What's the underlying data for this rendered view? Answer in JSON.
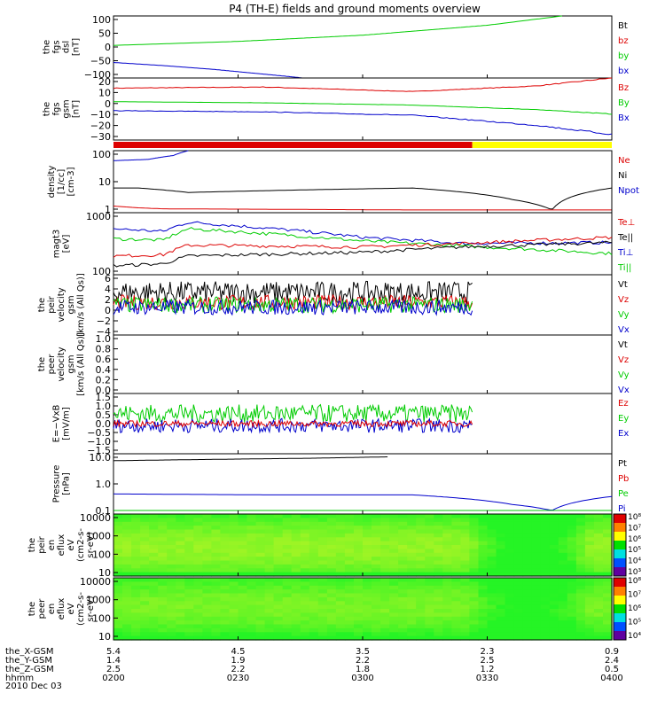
{
  "title": "P4 (TH-E) fields and ground moments overview",
  "colors": {
    "black": "#000000",
    "red": "#dd0000",
    "green": "#00cc00",
    "blue": "#0000cc",
    "yellow": "#ffff00",
    "axis": "#000000"
  },
  "panels": [
    {
      "id": "fgs-dsl",
      "ylabel": [
        "the",
        "fgs",
        "dsl",
        "[nT]"
      ],
      "yticks": [
        "100",
        "50",
        "0",
        "−50",
        "−100"
      ],
      "legend": [
        {
          "text": "Bt",
          "color": "black"
        },
        {
          "text": "bz",
          "color": "red"
        },
        {
          "text": "by",
          "color": "green"
        },
        {
          "text": "bx",
          "color": "blue"
        }
      ]
    },
    {
      "id": "fgs-gsm",
      "ylabel": [
        "the",
        "fgs",
        "gsm",
        "[nT]"
      ],
      "yticks": [
        "20",
        "10",
        "0",
        "−10",
        "−20",
        "−30"
      ],
      "legend": [
        {
          "text": "Bz",
          "color": "red"
        },
        {
          "text": "By",
          "color": "green"
        },
        {
          "text": "Bx",
          "color": "blue"
        }
      ]
    },
    {
      "id": "mode-bar"
    },
    {
      "id": "density",
      "ylabel": [
        "density",
        "[1/cc]",
        "[cm-3]"
      ],
      "yticks": [
        "100",
        "10",
        "1"
      ],
      "legend": [
        {
          "text": "Ne",
          "color": "red"
        },
        {
          "text": "Ni",
          "color": "black"
        },
        {
          "text": "Npot",
          "color": "blue"
        }
      ]
    },
    {
      "id": "temperature",
      "ylabel": [
        "magt3",
        "[eV]"
      ],
      "yticks": [
        "1000",
        "100"
      ],
      "legend": [
        {
          "text": "Te⊥",
          "color": "red"
        },
        {
          "text": "Te||",
          "color": "black"
        },
        {
          "text": "Ti⊥",
          "color": "blue"
        },
        {
          "text": "Ti||",
          "color": "green"
        }
      ]
    },
    {
      "id": "vel-full",
      "ylabel": [
        "the",
        "peir",
        "velocity",
        "gsm",
        "[km/s (All Qs)]"
      ],
      "yticks": [
        "6",
        "4",
        "2",
        "0",
        "−2",
        "−4"
      ],
      "legend": [
        {
          "text": "Vt",
          "color": "black"
        },
        {
          "text": "Vz",
          "color": "red"
        },
        {
          "text": "Vy",
          "color": "green"
        },
        {
          "text": "Vx",
          "color": "blue"
        }
      ]
    },
    {
      "id": "vel-burst",
      "ylabel": [
        "the",
        "peer",
        "velocity",
        "gsm",
        "[km/s (All Qs)]"
      ],
      "yticks": [
        "1.0",
        "0.8",
        "0.6",
        "0.4",
        "0.2",
        "0.0"
      ],
      "legend": [
        {
          "text": "Vt",
          "color": "black"
        },
        {
          "text": "Vz",
          "color": "red"
        },
        {
          "text": "Vy",
          "color": "green"
        },
        {
          "text": "Vx",
          "color": "blue"
        }
      ]
    },
    {
      "id": "efield",
      "ylabel": [
        "E=−VxB",
        "[mV/m]"
      ],
      "yticks": [
        "1.5",
        "1.0",
        "0.5",
        "0.0",
        "−0.5",
        "−1.0",
        "−1.5"
      ],
      "legend": [
        {
          "text": "Ez",
          "color": "red"
        },
        {
          "text": "Ey",
          "color": "green"
        },
        {
          "text": "Ex",
          "color": "blue"
        }
      ]
    },
    {
      "id": "pressure",
      "ylabel": [
        "Pressure",
        "[nPa]"
      ],
      "yticks": [
        "10.0",
        "1.0",
        "0.1"
      ],
      "legend": [
        {
          "text": "Pt",
          "color": "black"
        },
        {
          "text": "Pb",
          "color": "red"
        },
        {
          "text": "Pe",
          "color": "green"
        },
        {
          "text": "Pi",
          "color": "blue"
        }
      ]
    },
    {
      "id": "ion-spec",
      "ylabel": [
        "the",
        "peir",
        "en",
        "eflux",
        "eV",
        "(cm2-s-",
        "sr-eV)"
      ],
      "yticks": [
        "10000",
        "1000",
        "100",
        "10"
      ],
      "colorbar": [
        "10⁸",
        "10⁷",
        "10⁶",
        "10⁵",
        "10⁴",
        "10³"
      ]
    },
    {
      "id": "ele-spec",
      "ylabel": [
        "the",
        "peer",
        "en",
        "eflux",
        "eV",
        "(cm2-s-",
        "sr-eV)"
      ],
      "yticks": [
        "10000",
        "1000",
        "100",
        "10"
      ],
      "colorbar": [
        "10⁸",
        "10⁷",
        "10⁶",
        "10⁵",
        "10⁴"
      ]
    }
  ],
  "xaxis": {
    "rows": [
      {
        "label": "the_X-GSM",
        "values": [
          "5.4",
          "4.5",
          "3.5",
          "2.3",
          "0.9"
        ]
      },
      {
        "label": "the_Y-GSM",
        "values": [
          "1.4",
          "1.9",
          "2.2",
          "2.5",
          "2.4"
        ]
      },
      {
        "label": "the_Z-GSM",
        "values": [
          "2.5",
          "2.2",
          "1.8",
          "1.2",
          "0.5"
        ]
      },
      {
        "label": "hhmm",
        "values": [
          "0200",
          "0230",
          "0300",
          "0330",
          "0400"
        ]
      }
    ],
    "date": "2010 Dec 03"
  },
  "chart_data": {
    "type": "line",
    "title": "P4 (TH-E) fields and ground moments overview",
    "x_ticks": [
      "0200",
      "0230",
      "0300",
      "0330",
      "0400"
    ],
    "date": "2010 Dec 03",
    "panels": [
      {
        "id": "fgs-dsl",
        "ylim": [
          -100,
          100
        ],
        "series": [
          {
            "name": "by",
            "color": "green",
            "x": [
              0,
              0.25,
              0.5,
              0.75,
              0.9
            ],
            "y": [
              5,
              18,
              38,
              70,
              100
            ]
          },
          {
            "name": "bx",
            "color": "blue",
            "x": [
              0,
              0.1,
              0.2,
              0.35,
              0.38
            ],
            "y": [
              -50,
              -60,
              -72,
              -95,
              -100
            ]
          }
        ]
      },
      {
        "id": "fgs-gsm",
        "ylim": [
          -35,
          20
        ],
        "series": [
          {
            "name": "Bz",
            "color": "red",
            "x": [
              0,
              0.3,
              0.6,
              0.85,
              1
            ],
            "y": [
              11,
              12,
              8,
              13,
              20
            ]
          },
          {
            "name": "By",
            "color": "green",
            "x": [
              0,
              0.3,
              0.6,
              0.85,
              1
            ],
            "y": [
              -1,
              -2,
              -4,
              -8,
              -12
            ]
          },
          {
            "name": "Bx",
            "color": "blue",
            "x": [
              0,
              0.3,
              0.6,
              0.85,
              1
            ],
            "y": [
              -9,
              -10,
              -13,
              -22,
              -30
            ]
          }
        ]
      },
      {
        "id": "density",
        "ylim": [
          0.3,
          200
        ],
        "log": true,
        "series": [
          {
            "name": "Ne",
            "color": "red",
            "x": [
              0,
              0.05,
              0.1,
              0.6,
              1
            ],
            "y": [
              0.6,
              0.5,
              0.45,
              0.4,
              0.4
            ]
          },
          {
            "name": "Ni",
            "color": "black",
            "x": [
              0,
              0.05,
              0.15,
              0.6,
              0.8,
              0.88,
              1
            ],
            "y": [
              4,
              4,
              2.5,
              4,
              1.2,
              0.4,
              4
            ]
          },
          {
            "name": "Npot",
            "color": "blue",
            "x": [
              0,
              0.07,
              0.12,
              0.15
            ],
            "y": [
              70,
              80,
              120,
              200
            ]
          }
        ]
      },
      {
        "id": "temperature",
        "ylim": [
          100,
          1000
        ],
        "log": true,
        "series": [
          {
            "name": "Ti⊥",
            "color": "blue",
            "x": [
              0,
              0.1,
              0.15,
              0.5,
              0.7,
              1
            ],
            "y": [
              550,
              500,
              700,
              400,
              320,
              330
            ]
          },
          {
            "name": "Ti||",
            "color": "green",
            "x": [
              0,
              0.1,
              0.15,
              0.5,
              0.7,
              1
            ],
            "y": [
              380,
              360,
              550,
              350,
              290,
              220
            ]
          },
          {
            "name": "Te⊥",
            "color": "red",
            "x": [
              0,
              0.1,
              0.15,
              0.5,
              0.7,
              1
            ],
            "y": [
              200,
              210,
              300,
              280,
              320,
              400
            ]
          },
          {
            "name": "Te||",
            "color": "black",
            "x": [
              0,
              0.1,
              0.15,
              0.5,
              0.7,
              1
            ],
            "y": [
              140,
              150,
              200,
              230,
              280,
              330
            ]
          }
        ]
      },
      {
        "id": "vel-full",
        "ylim": [
          -5,
          7
        ],
        "series": [
          {
            "name": "Vt",
            "color": "black",
            "level": 3.5,
            "amp": 2.2,
            "xend": 0.72
          },
          {
            "name": "Vz",
            "color": "red",
            "level": 1.5,
            "amp": 1.5,
            "xend": 0.72
          },
          {
            "name": "Vy",
            "color": "green",
            "level": 1,
            "amp": 1.6,
            "xend": 0.72
          },
          {
            "name": "Vx",
            "color": "blue",
            "level": 0.5,
            "amp": 1.5,
            "xend": 0.72
          }
        ]
      },
      {
        "id": "efield",
        "ylim": [
          -1.5,
          1.5
        ],
        "series": [
          {
            "name": "Ey",
            "color": "green",
            "level": 0.5,
            "amp": 0.45,
            "xend": 0.72
          },
          {
            "name": "Ex",
            "color": "blue",
            "level": -0.1,
            "amp": 0.35,
            "xend": 0.72
          },
          {
            "name": "Ez",
            "color": "red",
            "level": 0.0,
            "amp": 0.15,
            "xend": 0.72
          }
        ]
      },
      {
        "id": "pressure",
        "ylim": [
          0.02,
          20
        ],
        "log": true,
        "series": [
          {
            "name": "Pt",
            "color": "black",
            "x": [
              0,
              0.2,
              0.4,
              0.55
            ],
            "y": [
              9,
              10.5,
              12,
              14
            ]
          },
          {
            "name": "Pi",
            "color": "blue",
            "x": [
              0,
              0.3,
              0.6,
              0.8,
              0.88,
              1
            ],
            "y": [
              0.2,
              0.18,
              0.18,
              0.06,
              0.03,
              0.15
            ]
          },
          {
            "name": "Pe",
            "color": "green",
            "x": [
              0,
              0.5,
              1
            ],
            "y": [
              0.03,
              0.03,
              0.03
            ]
          }
        ]
      }
    ]
  }
}
